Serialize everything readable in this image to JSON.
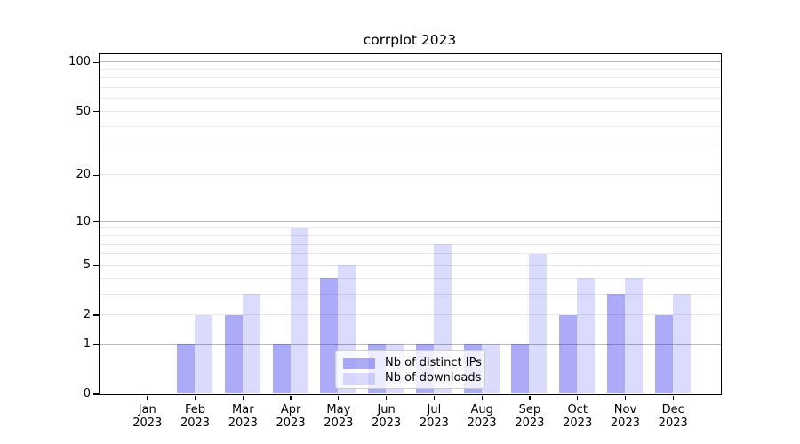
{
  "title": "corrplot 2023",
  "chart_data": {
    "type": "bar",
    "title": "corrplot 2023",
    "x_months": [
      "Jan",
      "Feb",
      "Mar",
      "Apr",
      "May",
      "Jun",
      "Jul",
      "Aug",
      "Sep",
      "Oct",
      "Nov",
      "Dec"
    ],
    "x_year": "2023",
    "series": [
      {
        "name": "Nb of distinct IPs",
        "values": [
          0,
          1,
          2,
          1,
          4,
          1,
          1,
          1,
          1,
          2,
          3,
          2
        ],
        "alpha": 0.35
      },
      {
        "name": "Nb of downloads",
        "values": [
          0,
          2,
          3,
          9,
          5,
          1,
          7,
          1,
          6,
          4,
          4,
          3
        ],
        "alpha": 0.15
      }
    ],
    "base_color": "#0f0ff0",
    "y_scale": "log1p",
    "y_ticks": [
      0,
      1,
      2,
      5,
      10,
      20,
      50,
      100
    ],
    "y_major_gridlines": [
      1,
      10,
      100
    ],
    "y_minor_gridlines": [
      2,
      3,
      4,
      5,
      6,
      7,
      8,
      9,
      20,
      30,
      40,
      50,
      60,
      70,
      80,
      90
    ],
    "ylim": [
      0,
      112
    ],
    "grid": true,
    "legend_position": "lower center"
  },
  "colors": {
    "background": "#ffffff",
    "spine": "#000000",
    "text": "#000000",
    "grid_major": "#b8b8b8",
    "grid_minor": "#e9e9e9",
    "legend_border": "#cccccc",
    "legend_bg": "rgba(255,255,255,0.8)"
  }
}
